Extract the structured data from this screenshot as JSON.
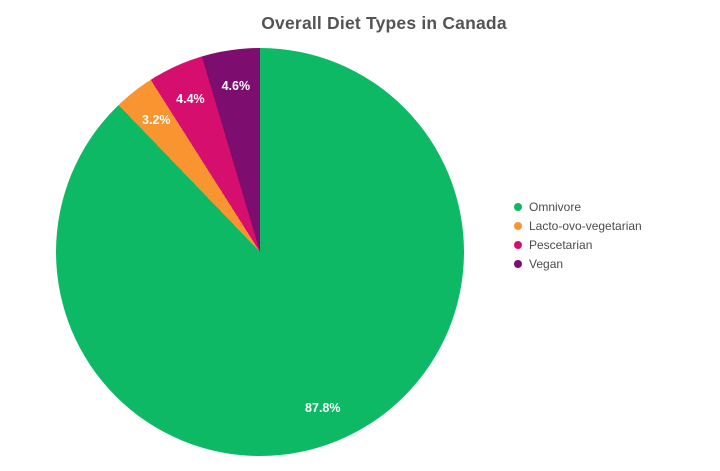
{
  "page": {
    "background": "#ffffff"
  },
  "chart_data": {
    "type": "pie",
    "title": "Overall Diet Types in Canada",
    "labels": [
      "Omnivore",
      "Lacto-ovo-vegetarian",
      "Pescetarian",
      "Vegan"
    ],
    "values": [
      87.8,
      3.2,
      4.4,
      4.6
    ],
    "display_labels": [
      "87.8%",
      "3.2%",
      "4.4%",
      "4.6%"
    ],
    "colors": [
      "#0db964",
      "#f89530",
      "#d60e6d",
      "#7d0d6f"
    ],
    "start_angle": "top",
    "direction": "clockwise",
    "legend_position": "right",
    "slice_label_color": "#ffffff",
    "title_color": "#545454",
    "legend_text_color": "#4c4c4c",
    "background": "#ffffff"
  }
}
